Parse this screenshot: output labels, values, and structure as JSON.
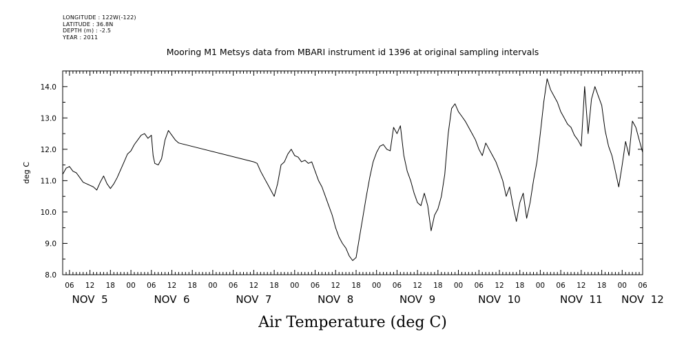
{
  "header": {
    "lines": [
      "LONGITUDE : 122W(-122)",
      "LATITUDE : 36.8N",
      "DEPTH (m) : -2.5",
      "YEAR : 2011"
    ]
  },
  "chart_data": {
    "type": "line",
    "title": "Mooring M1 Metsys data from MBARI instrument id 1396 at original sampling intervals",
    "xlabel": "Air Temperature (deg C)",
    "ylabel": "deg C",
    "ylim": [
      8.0,
      14.5
    ],
    "yticks": [
      "8.0",
      "9.0",
      "10.0",
      "11.0",
      "12.0",
      "13.0",
      "14.0"
    ],
    "xlim": [
      "2011-11-05T04:00",
      "2011-11-12T06:00"
    ],
    "hour_ticks": [
      "06",
      "12",
      "18",
      "00",
      "06",
      "12",
      "18",
      "00",
      "06",
      "12",
      "18",
      "00",
      "06",
      "12",
      "18",
      "00",
      "06",
      "12",
      "18",
      "00",
      "06",
      "12",
      "18",
      "00",
      "06",
      "12",
      "18",
      "00",
      "06"
    ],
    "day_labels": [
      "NOV 5",
      "NOV 6",
      "NOV 7",
      "NOV 8",
      "NOV 9",
      "NOV 10",
      "NOV 11",
      "NOV 12"
    ],
    "series": [
      {
        "values": [
          [
            "2011-11-05T04:00",
            11.2
          ],
          [
            "2011-11-05T05:00",
            11.4
          ],
          [
            "2011-11-05T06:00",
            11.45
          ],
          [
            "2011-11-05T07:00",
            11.3
          ],
          [
            "2011-11-05T08:00",
            11.25
          ],
          [
            "2011-11-05T09:00",
            11.1
          ],
          [
            "2011-11-05T10:00",
            10.95
          ],
          [
            "2011-11-05T11:00",
            10.9
          ],
          [
            "2011-11-05T12:00",
            10.85
          ],
          [
            "2011-11-05T13:00",
            10.8
          ],
          [
            "2011-11-05T14:00",
            10.7
          ],
          [
            "2011-11-05T15:00",
            10.95
          ],
          [
            "2011-11-05T16:00",
            11.15
          ],
          [
            "2011-11-05T17:00",
            10.9
          ],
          [
            "2011-11-05T18:00",
            10.75
          ],
          [
            "2011-11-05T19:00",
            10.9
          ],
          [
            "2011-11-05T20:00",
            11.1
          ],
          [
            "2011-11-05T21:00",
            11.35
          ],
          [
            "2011-11-05T22:00",
            11.6
          ],
          [
            "2011-11-05T23:00",
            11.85
          ],
          [
            "2011-11-06T00:00",
            11.95
          ],
          [
            "2011-11-06T01:00",
            12.15
          ],
          [
            "2011-11-06T02:00",
            12.3
          ],
          [
            "2011-11-06T03:00",
            12.45
          ],
          [
            "2011-11-06T04:00",
            12.5
          ],
          [
            "2011-11-06T05:00",
            12.35
          ],
          [
            "2011-11-06T06:00",
            12.45
          ],
          [
            "2011-11-06T06:30",
            11.8
          ],
          [
            "2011-11-06T07:00",
            11.55
          ],
          [
            "2011-11-06T08:00",
            11.5
          ],
          [
            "2011-11-06T09:00",
            11.7
          ],
          [
            "2011-11-06T10:00",
            12.3
          ],
          [
            "2011-11-06T11:00",
            12.6
          ],
          [
            "2011-11-06T12:00",
            12.45
          ],
          [
            "2011-11-06T13:00",
            12.3
          ],
          [
            "2011-11-06T14:00",
            12.2
          ],
          [
            "2011-11-07T12:00",
            11.6
          ],
          [
            "2011-11-07T13:00",
            11.55
          ],
          [
            "2011-11-07T14:00",
            11.3
          ],
          [
            "2011-11-07T15:00",
            11.1
          ],
          [
            "2011-11-07T16:00",
            10.9
          ],
          [
            "2011-11-07T17:00",
            10.7
          ],
          [
            "2011-11-07T18:00",
            10.5
          ],
          [
            "2011-11-07T19:00",
            10.9
          ],
          [
            "2011-11-07T20:00",
            11.5
          ],
          [
            "2011-11-07T21:00",
            11.6
          ],
          [
            "2011-11-07T22:00",
            11.85
          ],
          [
            "2011-11-07T23:00",
            12.0
          ],
          [
            "2011-11-08T00:00",
            11.8
          ],
          [
            "2011-11-08T01:00",
            11.75
          ],
          [
            "2011-11-08T02:00",
            11.6
          ],
          [
            "2011-11-08T03:00",
            11.65
          ],
          [
            "2011-11-08T04:00",
            11.55
          ],
          [
            "2011-11-08T05:00",
            11.6
          ],
          [
            "2011-11-08T06:00",
            11.3
          ],
          [
            "2011-11-08T07:00",
            11.0
          ],
          [
            "2011-11-08T08:00",
            10.8
          ],
          [
            "2011-11-08T09:00",
            10.5
          ],
          [
            "2011-11-08T10:00",
            10.2
          ],
          [
            "2011-11-08T11:00",
            9.9
          ],
          [
            "2011-11-08T12:00",
            9.5
          ],
          [
            "2011-11-08T13:00",
            9.2
          ],
          [
            "2011-11-08T14:00",
            9.0
          ],
          [
            "2011-11-08T15:00",
            8.85
          ],
          [
            "2011-11-08T16:00",
            8.6
          ],
          [
            "2011-11-08T17:00",
            8.45
          ],
          [
            "2011-11-08T18:00",
            8.55
          ],
          [
            "2011-11-08T19:00",
            9.2
          ],
          [
            "2011-11-08T20:00",
            9.85
          ],
          [
            "2011-11-08T21:00",
            10.5
          ],
          [
            "2011-11-08T22:00",
            11.1
          ],
          [
            "2011-11-08T23:00",
            11.6
          ],
          [
            "2011-11-09T00:00",
            11.9
          ],
          [
            "2011-11-09T01:00",
            12.1
          ],
          [
            "2011-11-09T02:00",
            12.15
          ],
          [
            "2011-11-09T03:00",
            12.0
          ],
          [
            "2011-11-09T04:00",
            11.95
          ],
          [
            "2011-11-09T05:00",
            12.7
          ],
          [
            "2011-11-09T06:00",
            12.5
          ],
          [
            "2011-11-09T07:00",
            12.75
          ],
          [
            "2011-11-09T08:00",
            11.8
          ],
          [
            "2011-11-09T09:00",
            11.3
          ],
          [
            "2011-11-09T10:00",
            11.0
          ],
          [
            "2011-11-09T11:00",
            10.6
          ],
          [
            "2011-11-09T12:00",
            10.3
          ],
          [
            "2011-11-09T13:00",
            10.2
          ],
          [
            "2011-11-09T14:00",
            10.6
          ],
          [
            "2011-11-09T15:00",
            10.2
          ],
          [
            "2011-11-09T16:00",
            9.4
          ],
          [
            "2011-11-09T17:00",
            9.9
          ],
          [
            "2011-11-09T18:00",
            10.1
          ],
          [
            "2011-11-09T19:00",
            10.5
          ],
          [
            "2011-11-09T20:00",
            11.2
          ],
          [
            "2011-11-09T21:00",
            12.5
          ],
          [
            "2011-11-09T22:00",
            13.3
          ],
          [
            "2011-11-09T23:00",
            13.45
          ],
          [
            "2011-11-10T00:00",
            13.2
          ],
          [
            "2011-11-10T01:00",
            13.05
          ],
          [
            "2011-11-10T02:00",
            12.9
          ],
          [
            "2011-11-10T03:00",
            12.7
          ],
          [
            "2011-11-10T04:00",
            12.5
          ],
          [
            "2011-11-10T05:00",
            12.3
          ],
          [
            "2011-11-10T06:00",
            12.0
          ],
          [
            "2011-11-10T07:00",
            11.8
          ],
          [
            "2011-11-10T08:00",
            12.2
          ],
          [
            "2011-11-10T09:00",
            12.0
          ],
          [
            "2011-11-10T10:00",
            11.8
          ],
          [
            "2011-11-10T11:00",
            11.6
          ],
          [
            "2011-11-10T12:00",
            11.3
          ],
          [
            "2011-11-10T13:00",
            11.0
          ],
          [
            "2011-11-10T14:00",
            10.5
          ],
          [
            "2011-11-10T15:00",
            10.8
          ],
          [
            "2011-11-10T16:00",
            10.2
          ],
          [
            "2011-11-10T17:00",
            9.7
          ],
          [
            "2011-11-10T18:00",
            10.3
          ],
          [
            "2011-11-10T19:00",
            10.6
          ],
          [
            "2011-11-10T20:00",
            9.8
          ],
          [
            "2011-11-10T21:00",
            10.3
          ],
          [
            "2011-11-10T22:00",
            11.0
          ],
          [
            "2011-11-10T23:00",
            11.6
          ],
          [
            "2011-11-11T00:00",
            12.5
          ],
          [
            "2011-11-11T01:00",
            13.5
          ],
          [
            "2011-11-11T02:00",
            14.25
          ],
          [
            "2011-11-11T03:00",
            13.9
          ],
          [
            "2011-11-11T04:00",
            13.7
          ],
          [
            "2011-11-11T05:00",
            13.5
          ],
          [
            "2011-11-11T06:00",
            13.2
          ],
          [
            "2011-11-11T07:00",
            13.0
          ],
          [
            "2011-11-11T08:00",
            12.8
          ],
          [
            "2011-11-11T09:00",
            12.7
          ],
          [
            "2011-11-11T10:00",
            12.45
          ],
          [
            "2011-11-11T11:00",
            12.3
          ],
          [
            "2011-11-11T12:00",
            12.1
          ],
          [
            "2011-11-11T13:00",
            14.0
          ],
          [
            "2011-11-11T14:00",
            12.5
          ],
          [
            "2011-11-11T15:00",
            13.6
          ],
          [
            "2011-11-11T16:00",
            14.0
          ],
          [
            "2011-11-11T17:00",
            13.7
          ],
          [
            "2011-11-11T18:00",
            13.4
          ],
          [
            "2011-11-11T19:00",
            12.6
          ],
          [
            "2011-11-11T20:00",
            12.1
          ],
          [
            "2011-11-11T21:00",
            11.8
          ],
          [
            "2011-11-11T22:00",
            11.3
          ],
          [
            "2011-11-11T23:00",
            10.8
          ],
          [
            "2011-11-12T00:00",
            11.5
          ],
          [
            "2011-11-12T01:00",
            12.25
          ],
          [
            "2011-11-12T02:00",
            11.8
          ],
          [
            "2011-11-12T03:00",
            12.9
          ],
          [
            "2011-11-12T04:00",
            12.7
          ],
          [
            "2011-11-12T05:00",
            12.3
          ],
          [
            "2011-11-12T06:00",
            11.9
          ]
        ]
      }
    ]
  }
}
